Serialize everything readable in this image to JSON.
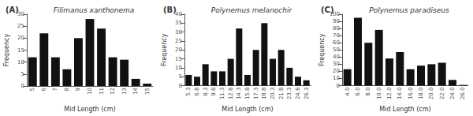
{
  "chart_data": [
    {
      "type": "bar",
      "title": "Filimanus xanthonema",
      "annotations": [
        "(A)"
      ],
      "xlabel": "Mid Length (cm)",
      "ylabel": "Frequency",
      "categories": [
        "5",
        "6",
        "7",
        "8",
        "9",
        "10",
        "11",
        "12",
        "13",
        "14",
        "15"
      ],
      "values": [
        12,
        22,
        12,
        7,
        20,
        28,
        24,
        12,
        11,
        3,
        1
      ],
      "color": "#111111",
      "ylim": [
        0,
        30
      ],
      "yticks": [
        0,
        5,
        10,
        15,
        20,
        25,
        30
      ],
      "grid": false
    },
    {
      "type": "bar",
      "title": "Polynemus melanochir",
      "annotations": [
        "(B)"
      ],
      "xlabel": "Mid Length (cm)",
      "ylabel": "Frequency",
      "categories": [
        "5.3",
        "6.8",
        "8.3",
        "9.8",
        "11.3",
        "12.8",
        "14.3",
        "15.8",
        "17.3",
        "18.8",
        "20.3",
        "21.8",
        "23.3",
        "24.8",
        "26.3"
      ],
      "values": [
        6,
        5,
        12,
        8,
        8,
        15,
        32,
        6,
        20,
        35,
        15,
        20,
        10,
        5,
        3
      ],
      "color": "#111111",
      "ylim": [
        0,
        40
      ],
      "yticks": [
        0,
        5,
        10,
        15,
        20,
        25,
        30,
        35,
        40
      ],
      "grid": false
    },
    {
      "type": "bar",
      "title": "Polynemus paradiseus",
      "annotations": [
        "(C)"
      ],
      "xlabel": "Mid Length (cm)",
      "ylabel": "Frequency",
      "categories": [
        "4.0",
        "6.0",
        "8.0",
        "10.0",
        "12.0",
        "14.0",
        "16.0",
        "18.0",
        "20.0",
        "22.0",
        "24.0",
        "26.0"
      ],
      "values": [
        23,
        95,
        60,
        78,
        38,
        47,
        23,
        28,
        30,
        32,
        8,
        1
      ],
      "color": "#111111",
      "ylim": [
        0,
        100
      ],
      "yticks": [
        0,
        10,
        20,
        30,
        40,
        50,
        60,
        70,
        80,
        90,
        100
      ],
      "grid": false
    }
  ]
}
